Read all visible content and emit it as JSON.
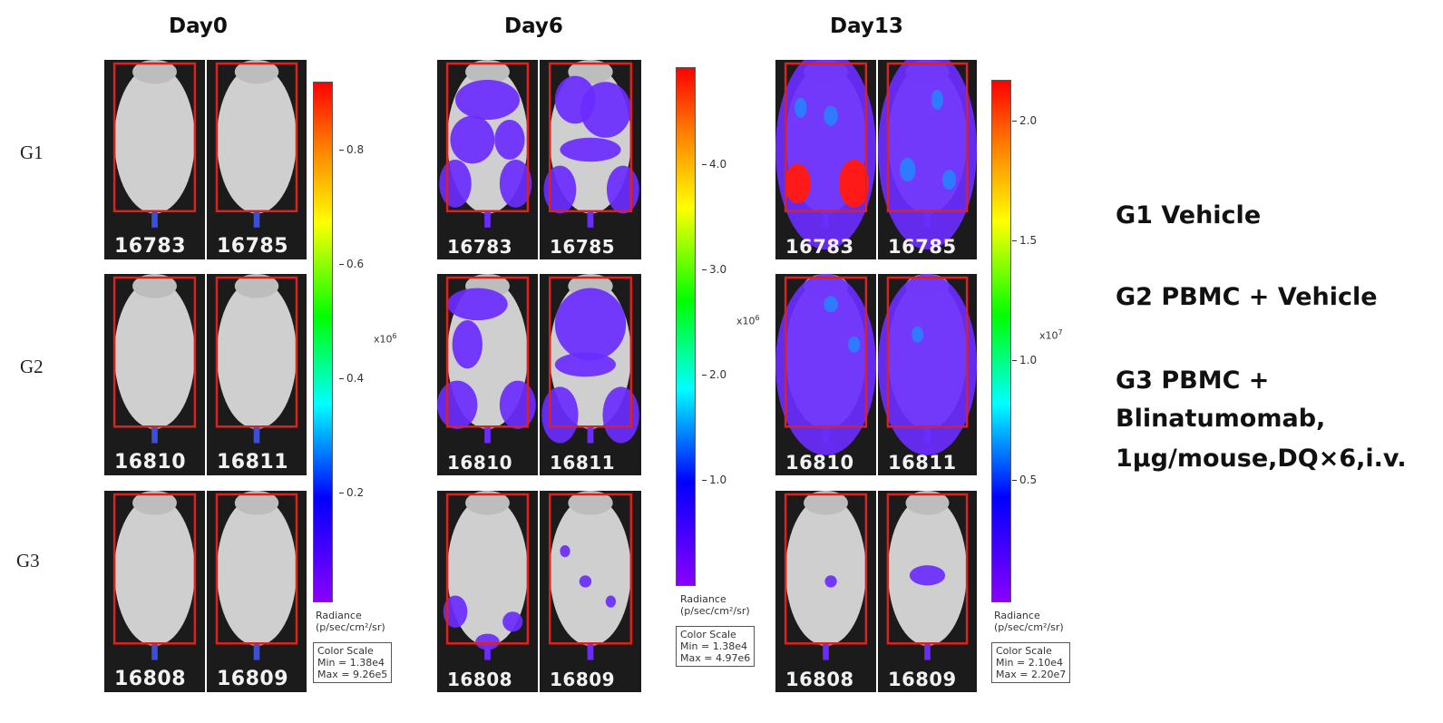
{
  "days": [
    "Day0",
    "Day6",
    "Day13"
  ],
  "groups": [
    "G1",
    "G2",
    "G3"
  ],
  "ids": [
    [
      "16783",
      "16785"
    ],
    [
      "16810",
      "16811"
    ],
    [
      "16808",
      "16809"
    ]
  ],
  "colorbars": [
    {
      "ticks": [
        "0.8",
        "0.6",
        "0.4",
        "0.2"
      ],
      "multiplier": "x10",
      "exponent": "6",
      "radiance": [
        "Radiance",
        "(p/sec/cm²/sr)"
      ],
      "scale": [
        "Color Scale",
        "Min = 1.38e4",
        "Max = 9.26e5"
      ]
    },
    {
      "ticks": [
        "4.0",
        "3.0",
        "2.0",
        "1.0"
      ],
      "multiplier": "x10",
      "exponent": "6",
      "radiance": [
        "Radiance",
        "(p/sec/cm²/sr)"
      ],
      "scale": [
        "Color Scale",
        "Min = 1.38e4",
        "Max = 4.97e6"
      ]
    },
    {
      "ticks": [
        "2.0",
        "1.5",
        "1.0",
        "0.5"
      ],
      "multiplier": "x10",
      "exponent": "7",
      "radiance": [
        "Radiance",
        "(p/sec/cm²/sr)"
      ],
      "scale": [
        "Color Scale",
        "Min = 2.10e4",
        "Max = 2.20e7"
      ]
    }
  ],
  "legend": [
    "G1 Vehicle",
    "G2 PBMC + Vehicle",
    "G3 PBMC +",
    "Blinatumomab,",
    "1μg/mouse,DQ×6,i.v."
  ],
  "colors": {
    "roi_box": "#e0201a",
    "signal_purple": "#6a2cff",
    "signal_blue": "#2f7bff",
    "signal_red": "#ff1a1a"
  }
}
